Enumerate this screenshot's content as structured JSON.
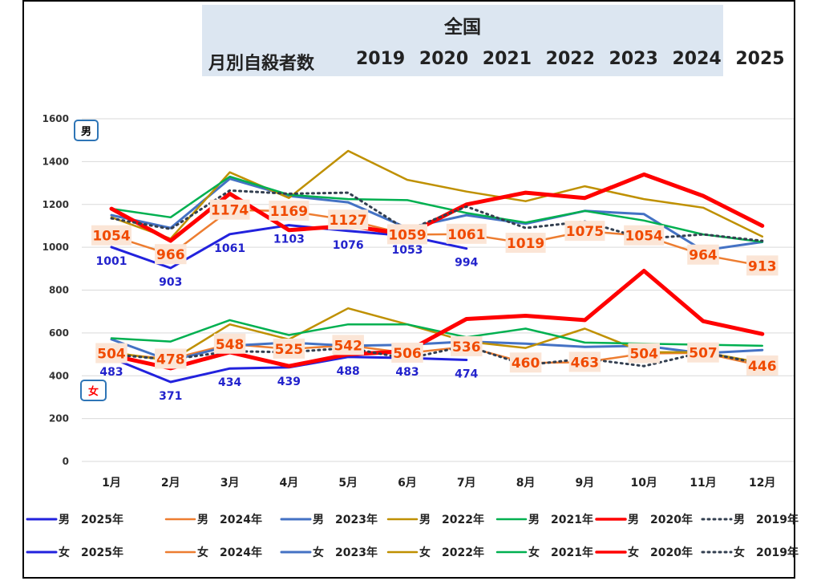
{
  "header": {
    "title": "全国",
    "subtitle": "月別自殺者数",
    "years": "2019 2020 2021 2022 2023 2024 2025"
  },
  "chart_data": {
    "type": "line",
    "categories": [
      "1月",
      "2月",
      "3月",
      "4月",
      "5月",
      "6月",
      "7月",
      "8月",
      "9月",
      "10月",
      "11月",
      "12月"
    ],
    "ylim": [
      0,
      1600
    ],
    "yticks": [
      0,
      200,
      400,
      600,
      800,
      1000,
      1200,
      1400,
      1600
    ],
    "grid": true,
    "group_labels": {
      "male": "男",
      "female": "女"
    },
    "series": [
      {
        "name": "男　2025年",
        "color": "#2222dd",
        "width": 3,
        "dash": "",
        "values": [
          1001,
          903,
          1061,
          1103,
          1076,
          1053,
          994,
          null,
          null,
          null,
          null,
          null
        ]
      },
      {
        "name": "男　2024年",
        "color": "#ed7d31",
        "width": 2.5,
        "dash": "",
        "values": [
          1054,
          966,
          1174,
          1169,
          1127,
          1059,
          1061,
          1019,
          1075,
          1054,
          964,
          913
        ]
      },
      {
        "name": "男　2023年",
        "color": "#4472c4",
        "width": 3,
        "dash": "",
        "values": [
          1150,
          1090,
          1320,
          1240,
          1210,
          1090,
          1150,
          1110,
          1170,
          1155,
          985,
          1025
        ]
      },
      {
        "name": "男　2022年",
        "color": "#bf9000",
        "width": 2.5,
        "dash": "",
        "values": [
          1140,
          1040,
          1350,
          1230,
          1450,
          1315,
          1260,
          1215,
          1285,
          1225,
          1185,
          1050
        ]
      },
      {
        "name": "男　2021年",
        "color": "#00b050",
        "width": 2.5,
        "dash": "",
        "values": [
          1180,
          1140,
          1330,
          1245,
          1225,
          1220,
          1160,
          1115,
          1170,
          1125,
          1060,
          1025
        ]
      },
      {
        "name": "男　2020年",
        "color": "#ff0000",
        "width": 5,
        "dash": "",
        "values": [
          1180,
          1030,
          1250,
          1080,
          1100,
          1060,
          1200,
          1255,
          1230,
          1340,
          1240,
          1100
        ]
      },
      {
        "name": "男　2019年",
        "color": "#333f50",
        "width": 3,
        "dash": "2 5",
        "values": [
          1135,
          1085,
          1265,
          1250,
          1255,
          1080,
          1190,
          1090,
          1120,
          1040,
          1060,
          1030
        ]
      },
      {
        "name": "女　2025年",
        "color": "#2222dd",
        "width": 3,
        "dash": "",
        "values": [
          483,
          371,
          434,
          439,
          488,
          483,
          474,
          null,
          null,
          null,
          null,
          null
        ]
      },
      {
        "name": "女　2024年",
        "color": "#ed7d31",
        "width": 2.5,
        "dash": "",
        "values": [
          504,
          478,
          548,
          525,
          542,
          506,
          536,
          460,
          463,
          504,
          507,
          446
        ]
      },
      {
        "name": "女　2023年",
        "color": "#4472c4",
        "width": 3,
        "dash": "",
        "values": [
          570,
          470,
          540,
          555,
          540,
          545,
          560,
          550,
          535,
          540,
          505,
          520
        ]
      },
      {
        "name": "女　2022年",
        "color": "#bf9000",
        "width": 2.5,
        "dash": "",
        "values": [
          510,
          470,
          640,
          570,
          715,
          640,
          560,
          530,
          620,
          510,
          510,
          460
        ]
      },
      {
        "name": "女　2021年",
        "color": "#00b050",
        "width": 2.5,
        "dash": "",
        "values": [
          575,
          560,
          660,
          590,
          640,
          640,
          580,
          620,
          555,
          550,
          545,
          540
        ]
      },
      {
        "name": "女　2020年",
        "color": "#ff0000",
        "width": 5,
        "dash": "",
        "values": [
          495,
          435,
          510,
          445,
          500,
          515,
          665,
          680,
          660,
          890,
          655,
          595
        ]
      },
      {
        "name": "女　2019年",
        "color": "#333f50",
        "width": 3,
        "dash": "2 5",
        "values": [
          500,
          475,
          515,
          510,
          530,
          480,
          540,
          450,
          480,
          445,
          510,
          455
        ]
      }
    ],
    "data_labels": [
      {
        "series": "男　2025年",
        "values": [
          1001,
          903,
          1061,
          1103,
          1076,
          1053,
          994,
          null,
          null,
          null,
          null,
          null
        ]
      },
      {
        "series": "男　2024年",
        "values": [
          1054,
          966,
          1174,
          1169,
          1127,
          1059,
          1061,
          1019,
          1075,
          1054,
          964,
          913
        ]
      },
      {
        "series": "女　2025年",
        "values": [
          483,
          371,
          434,
          439,
          488,
          483,
          474,
          null,
          null,
          null,
          null,
          null
        ]
      },
      {
        "series": "女　2024年",
        "values": [
          504,
          478,
          548,
          525,
          542,
          506,
          536,
          460,
          463,
          504,
          507,
          446
        ]
      }
    ]
  }
}
